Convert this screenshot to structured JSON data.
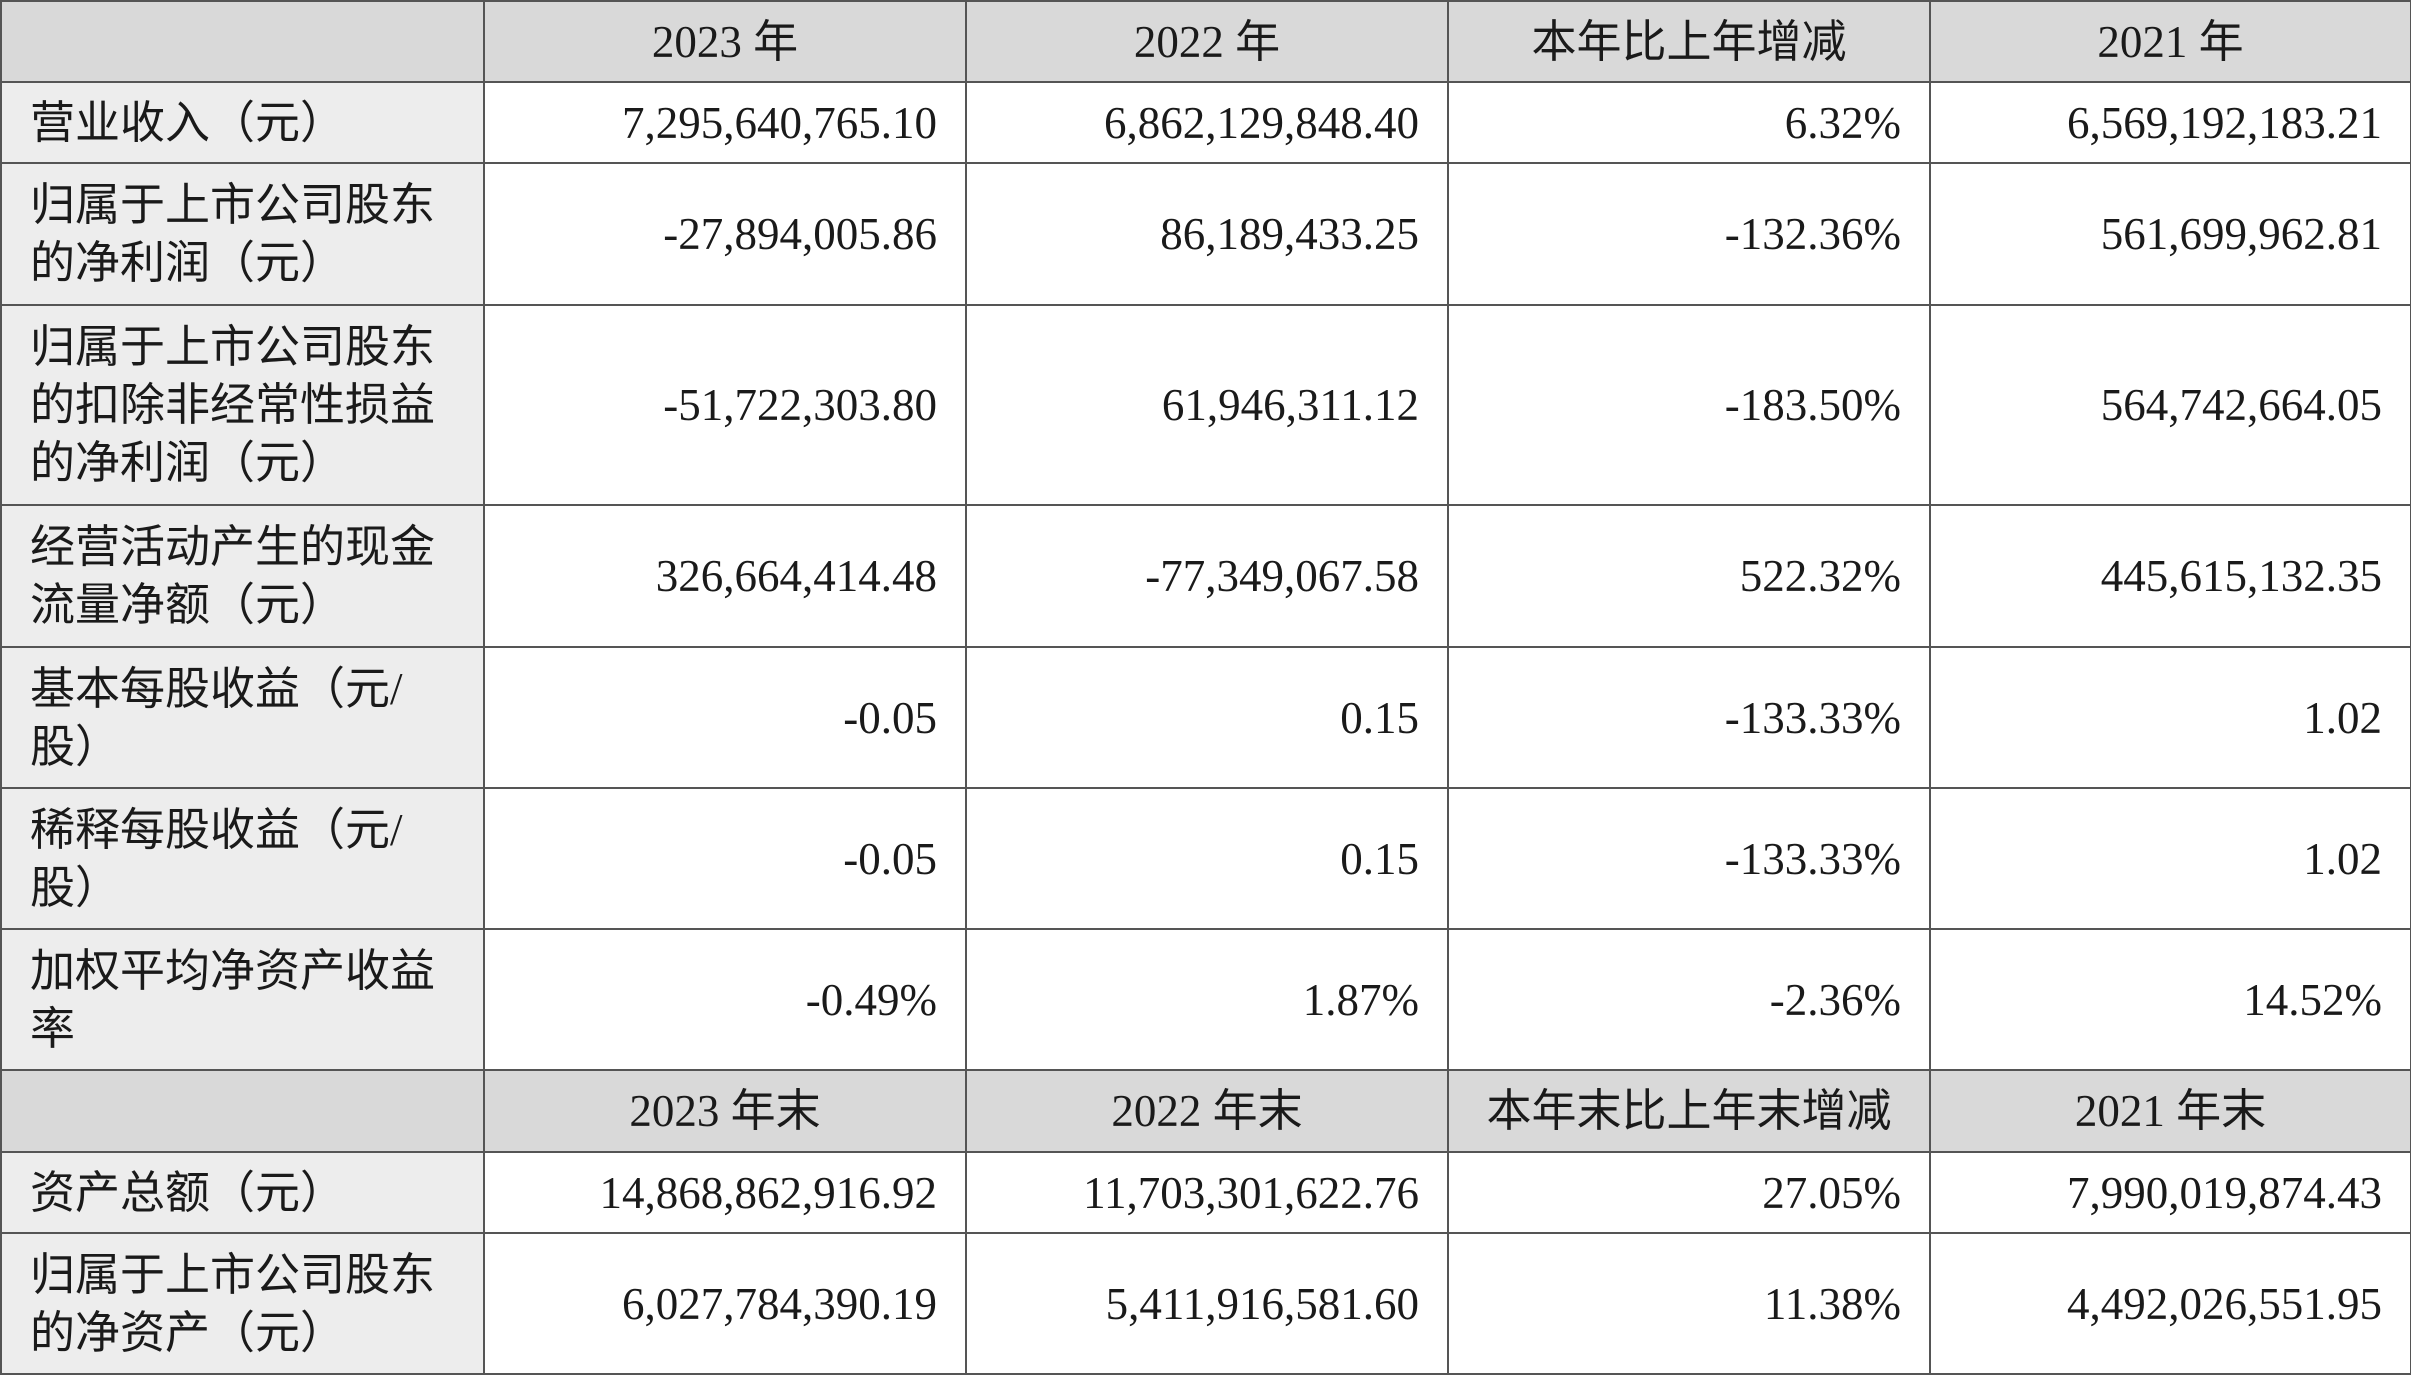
{
  "header_1": [
    "",
    "2023 年",
    "2022 年",
    "本年比上年增减",
    "2021 年"
  ],
  "rows_1": [
    {
      "label": "营业收入（元）",
      "values": [
        "7,295,640,765.10",
        "6,862,129,848.40",
        "6.32%",
        "6,569,192,183.21"
      ]
    },
    {
      "label": "归属于上市公司股东的净利润（元）",
      "values": [
        "-27,894,005.86",
        "86,189,433.25",
        "-132.36%",
        "561,699,962.81"
      ]
    },
    {
      "label": "归属于上市公司股东的扣除非经常性损益的净利润（元）",
      "values": [
        "-51,722,303.80",
        "61,946,311.12",
        "-183.50%",
        "564,742,664.05"
      ]
    },
    {
      "label": "经营活动产生的现金流量净额（元）",
      "values": [
        "326,664,414.48",
        "-77,349,067.58",
        "522.32%",
        "445,615,132.35"
      ]
    },
    {
      "label": "基本每股收益（元/股）",
      "values": [
        "-0.05",
        "0.15",
        "-133.33%",
        "1.02"
      ]
    },
    {
      "label": "稀释每股收益（元/股）",
      "values": [
        "-0.05",
        "0.15",
        "-133.33%",
        "1.02"
      ]
    },
    {
      "label": "加权平均净资产收益率",
      "values": [
        "-0.49%",
        "1.87%",
        "-2.36%",
        "14.52%"
      ]
    }
  ],
  "header_2": [
    "",
    "2023 年末",
    "2022 年末",
    "本年末比上年末增减",
    "2021 年末"
  ],
  "rows_2": [
    {
      "label": "资产总额（元）",
      "values": [
        "14,868,862,916.92",
        "11,703,301,622.76",
        "27.05%",
        "7,990,019,874.43"
      ]
    },
    {
      "label": "归属于上市公司股东的净资产（元）",
      "values": [
        "6,027,784,390.19",
        "5,411,916,581.60",
        "11.38%",
        "4,492,026,551.95"
      ]
    }
  ]
}
